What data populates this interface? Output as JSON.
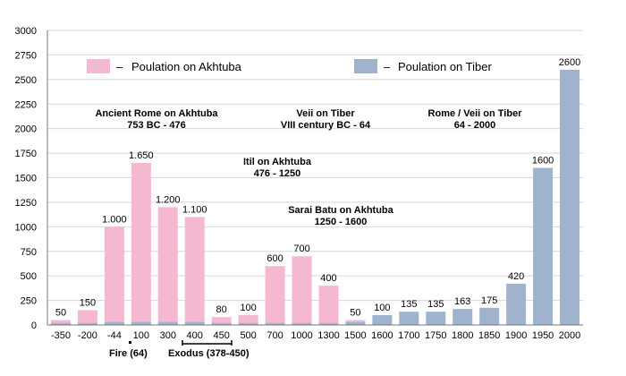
{
  "chart_data": {
    "type": "bar",
    "ylim": [
      0,
      3000
    ],
    "yticks": [
      0,
      250,
      500,
      750,
      1000,
      1250,
      1500,
      1750,
      2000,
      2250,
      2500,
      2750,
      3000
    ],
    "grid": true,
    "legend_position": "top",
    "categories": [
      "-350",
      "-200",
      "-44",
      "100",
      "300",
      "400",
      "450",
      "500",
      "700",
      "1000",
      "1300",
      "1500",
      "1600",
      "1700",
      "1750",
      "1800",
      "1850",
      "1900",
      "1950",
      "2000"
    ],
    "series": [
      {
        "name": "Poulation on Akhtuba",
        "color": "#f4b8d0",
        "values": [
          50,
          150,
          1000,
          1650,
          1200,
          1100,
          80,
          100,
          600,
          700,
          400,
          50,
          null,
          null,
          null,
          null,
          null,
          null,
          null,
          null
        ],
        "data_labels": [
          "50",
          "150",
          "1.000",
          "1.650",
          "1.200",
          "1.100",
          "80",
          "100",
          "600",
          "700",
          "400",
          "50",
          "",
          "",
          "",
          "",
          "",
          "",
          "",
          ""
        ]
      },
      {
        "name": "Poulation on Tiber",
        "color": "#9fb4cc",
        "values": [
          20,
          20,
          30,
          30,
          30,
          30,
          20,
          20,
          20,
          20,
          20,
          30,
          100,
          135,
          135,
          163,
          175,
          420,
          1600,
          2600
        ],
        "data_labels": [
          "",
          "",
          "",
          "",
          "",
          "",
          "",
          "",
          "",
          "",
          "",
          "",
          "100",
          "135",
          "135",
          "163",
          "175",
          "420",
          "1600",
          "2600"
        ]
      }
    ],
    "annotations": [
      {
        "line1": "Ancient Rome on Akhtuba",
        "line2": "753 BC - 476"
      },
      {
        "line1": "Veii on Tiber",
        "line2": "VIII century BC - 64"
      },
      {
        "line1": "Rome / Veii on Tiber",
        "line2": "64 - 2000"
      },
      {
        "line1": "Itil on Akhtuba",
        "line2": "476 - 1250"
      },
      {
        "line1": "Sarai Batu on Akhtuba",
        "line2": "1250 - 1600"
      }
    ],
    "notes": [
      "Fire (64)",
      "Exodus (378-450)"
    ]
  }
}
